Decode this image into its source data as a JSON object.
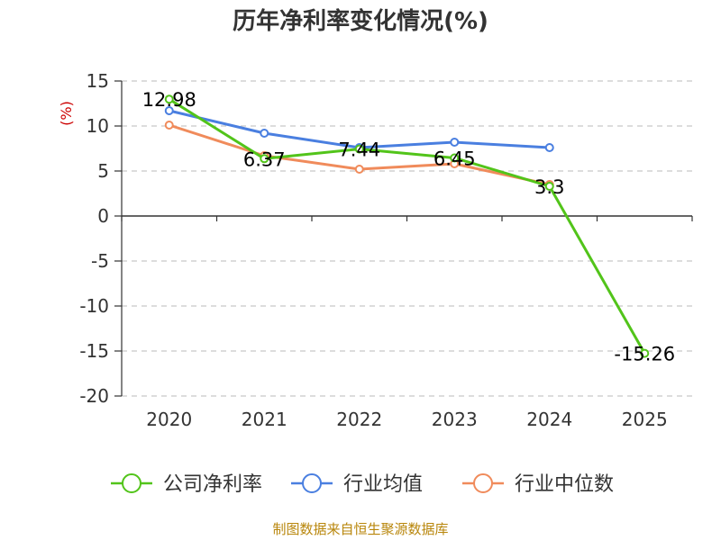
{
  "chart_data": {
    "type": "line",
    "title": "历年净利率变化情况(%)",
    "ylabel": "(%)",
    "xlabel": "",
    "categories": [
      "2020",
      "2021",
      "2022",
      "2023",
      "2024",
      "2025"
    ],
    "ylim": [
      -20,
      15
    ],
    "yticks": [
      15,
      10,
      5,
      0,
      -5,
      -10,
      -15,
      -20
    ],
    "yticklabels": [
      "15",
      "10",
      "5",
      "0",
      "-5",
      "-10",
      "-15",
      "-20"
    ],
    "grid": true,
    "legend_position": "bottom",
    "series": [
      {
        "name": "公司净利率",
        "color": "#52c41a",
        "values": [
          12.98,
          6.37,
          7.44,
          6.45,
          3.3,
          -15.26
        ],
        "labels": [
          "12.98",
          "6.37",
          "7.44",
          "6.45",
          "3.3",
          "-15.26"
        ]
      },
      {
        "name": "行业均值",
        "color": "#4a7fe0",
        "values": [
          11.7,
          9.2,
          7.6,
          8.2,
          7.6,
          null
        ]
      },
      {
        "name": "行业中位数",
        "color": "#f08b5b",
        "values": [
          10.1,
          6.7,
          5.2,
          5.8,
          3.5,
          null
        ]
      }
    ],
    "source": "制图数据来自恒生聚源数据库"
  }
}
